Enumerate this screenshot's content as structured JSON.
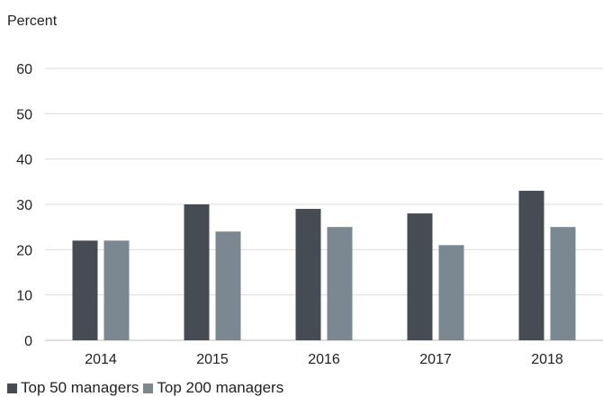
{
  "chart_data": {
    "type": "bar",
    "ylabel": "Percent",
    "categories": [
      "2014",
      "2015",
      "2016",
      "2017",
      "2018"
    ],
    "series": [
      {
        "name": "Top 50 managers",
        "color": "#454c54",
        "values": [
          22,
          30,
          29,
          28,
          33
        ]
      },
      {
        "name": "Top 200 managers",
        "color": "#7b8892",
        "values": [
          22,
          24,
          25,
          21,
          25
        ]
      }
    ],
    "ylim": [
      0,
      60
    ],
    "yticks": [
      "0",
      "10",
      "20",
      "30",
      "40",
      "50",
      "60"
    ],
    "grid": true,
    "legend_position": "bottom-left"
  }
}
